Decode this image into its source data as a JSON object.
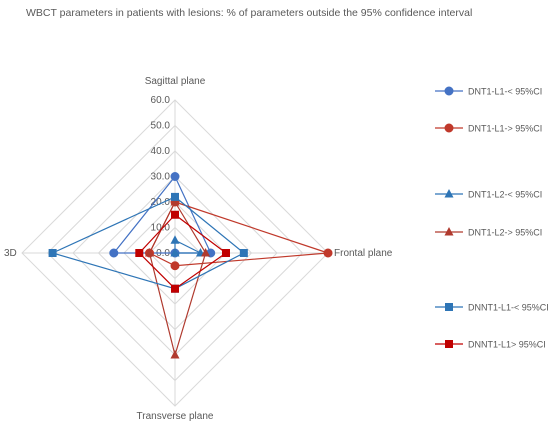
{
  "chart_data": {
    "type": "radar",
    "title": "WBCT parameters in patients with lesions:  % of parameters outside the 95% confidence interval",
    "axes": [
      "Sagittal plane",
      "Frontal plane",
      "Transverse plane",
      "3D"
    ],
    "rlim": [
      0,
      60
    ],
    "ticks": [
      "0.0",
      "10.0",
      "20.0",
      "30.0",
      "40.0",
      "50.0",
      "60.0"
    ],
    "grid": true,
    "legend_position": "right",
    "series": [
      {
        "name": "DNT1-L1-< 95%CI",
        "color": "#4472C4",
        "marker": "circle",
        "values": [
          30,
          14,
          0,
          24
        ]
      },
      {
        "name": "DNT1-L1-> 95%CI",
        "color": "#C0392B",
        "marker": "circle",
        "values": [
          20,
          60,
          5,
          10
        ]
      },
      {
        "name": "DNT1-L2-< 95%CI",
        "color": "#2E75B6",
        "marker": "triangle",
        "values": [
          5,
          10,
          0,
          0
        ]
      },
      {
        "name": "DNT1-L2-> 95%CI",
        "color": "#B03A2E",
        "marker": "triangle",
        "values": [
          20,
          12,
          40,
          10
        ]
      },
      {
        "name": "DNNT1-L1-< 95%CI",
        "color": "#2E75B6",
        "marker": "square",
        "values": [
          22,
          27,
          14,
          48
        ]
      },
      {
        "name": "DNNT1-L1> 95%CI",
        "color": "#C00000",
        "marker": "square",
        "values": [
          15,
          20,
          14,
          14
        ]
      }
    ]
  }
}
